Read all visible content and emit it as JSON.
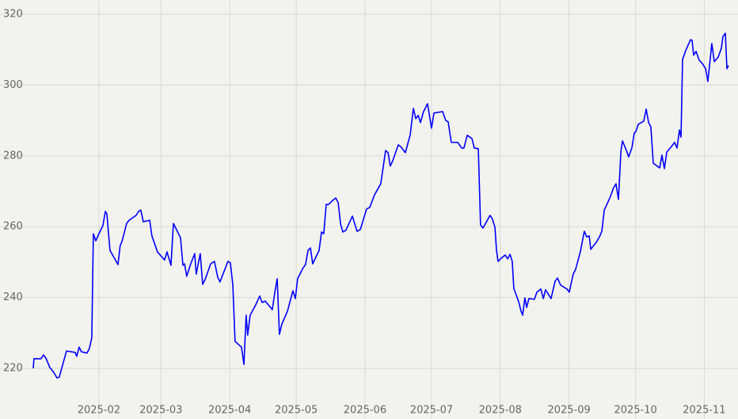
{
  "chart_data": {
    "type": "line",
    "color": "#0000ff",
    "grid": true,
    "xlim": [
      -13.6,
      319.2
    ],
    "ylim": [
      205.7,
      324.0
    ],
    "xticks": [
      {
        "value": 31,
        "label": "2025-02"
      },
      {
        "value": 59,
        "label": "2025-03"
      },
      {
        "value": 90,
        "label": "2025-04"
      },
      {
        "value": 120,
        "label": "2025-05"
      },
      {
        "value": 151,
        "label": "2025-06"
      },
      {
        "value": 181,
        "label": "2025-07"
      },
      {
        "value": 212,
        "label": "2025-08"
      },
      {
        "value": 243,
        "label": "2025-09"
      },
      {
        "value": 273,
        "label": "2025-10"
      },
      {
        "value": 304,
        "label": "2025-11"
      }
    ],
    "yticks": [
      220,
      240,
      260,
      280,
      300,
      320
    ],
    "x": [
      1.4,
      1.7,
      4.9,
      6.0,
      7.1,
      8.9,
      10.6,
      12.1,
      13.1,
      16.4,
      20.3,
      21.0,
      22.1,
      23.1,
      25.6,
      26.7,
      27.8,
      28.5,
      29.6,
      31.0,
      32.8,
      33.9,
      34.6,
      36.0,
      39.6,
      40.6,
      41.4,
      43.5,
      44.6,
      47.8,
      48.9,
      49.9,
      51.0,
      53.9,
      54.9,
      57.4,
      60.6,
      61.7,
      63.5,
      64.6,
      67.8,
      68.9,
      69.6,
      70.6,
      72.4,
      74.2,
      74.9,
      76.7,
      77.8,
      78.9,
      81.4,
      83.1,
      84.6,
      85.6,
      89.2,
      90.3,
      91.4,
      92.4,
      95.3,
      96.4,
      97.4,
      98.1,
      99.2,
      101.7,
      103.5,
      104.6,
      106.0,
      109.2,
      110.3,
      111.4,
      112.4,
      113.5,
      116.0,
      118.5,
      119.6,
      120.6,
      123.1,
      124.2,
      125.3,
      126.4,
      127.4,
      130.3,
      131.4,
      132.4,
      133.5,
      134.6,
      136.4,
      137.8,
      138.9,
      140.0,
      141.0,
      142.4,
      145.3,
      147.4,
      148.9,
      151.7,
      153.1,
      155.3,
      158.1,
      160.3,
      161.4,
      162.4,
      163.5,
      166.0,
      167.1,
      169.2,
      171.4,
      172.8,
      173.9,
      175.0,
      176.0,
      177.4,
      179.2,
      181.0,
      182.1,
      186.0,
      187.4,
      188.5,
      189.9,
      192.8,
      194.6,
      195.6,
      197.1,
      199.2,
      200.3,
      202.1,
      203.1,
      204.2,
      205.6,
      207.4,
      208.5,
      209.6,
      210.3,
      211.0,
      212.8,
      214.2,
      215.3,
      216.4,
      217.4,
      218.1,
      220.3,
      221.4,
      222.1,
      223.1,
      223.9,
      224.9,
      227.4,
      228.5,
      230.3,
      231.4,
      232.4,
      234.9,
      236.7,
      237.8,
      239.2,
      242.1,
      243.1,
      244.9,
      246.0,
      248.1,
      249.9,
      251.0,
      252.1,
      252.8,
      255.3,
      256.7,
      257.8,
      258.9,
      261.4,
      263.1,
      264.2,
      265.3,
      266.4,
      267.1,
      268.9,
      269.9,
      271.4,
      272.4,
      273.1,
      274.2,
      276.7,
      277.8,
      278.9,
      279.9,
      281.0,
      283.9,
      284.9,
      286.0,
      287.1,
      288.9,
      290.6,
      291.7,
      292.8,
      293.5,
      294.2,
      295.6,
      297.8,
      298.5,
      299.2,
      300.3,
      301.7,
      303.1,
      304.6,
      305.6,
      307.4,
      308.5,
      310.3,
      311.7,
      312.4,
      313.5,
      314.2,
      314.9
    ],
    "values": [
      220.0,
      222.7,
      222.7,
      223.8,
      222.9,
      220.2,
      218.9,
      217.3,
      217.5,
      224.9,
      224.5,
      223.4,
      226.0,
      224.7,
      224.3,
      225.6,
      228.7,
      258.0,
      256.0,
      258.0,
      260.3,
      264.3,
      263.6,
      253.3,
      249.3,
      254.7,
      255.8,
      260.9,
      261.8,
      263.2,
      264.3,
      264.7,
      261.4,
      261.8,
      257.4,
      252.9,
      250.6,
      252.9,
      249.1,
      260.9,
      256.9,
      249.1,
      249.5,
      246.0,
      249.5,
      252.4,
      246.6,
      252.4,
      243.7,
      245.1,
      249.5,
      250.2,
      245.7,
      244.4,
      250.2,
      249.8,
      243.5,
      227.6,
      226.0,
      221.1,
      235.0,
      229.4,
      235.0,
      237.9,
      240.4,
      238.6,
      239.0,
      236.6,
      241.3,
      245.3,
      229.6,
      232.5,
      236.1,
      241.9,
      239.7,
      245.3,
      248.4,
      249.3,
      253.3,
      254.0,
      249.5,
      253.3,
      258.5,
      258.0,
      266.3,
      266.3,
      267.4,
      268.1,
      266.8,
      260.7,
      258.5,
      259.0,
      263.0,
      258.7,
      259.2,
      265.0,
      265.4,
      269.0,
      272.1,
      281.5,
      280.9,
      277.1,
      278.6,
      283.1,
      282.6,
      280.9,
      286.0,
      293.4,
      290.5,
      291.4,
      289.4,
      292.5,
      294.7,
      287.8,
      292.1,
      292.5,
      290.0,
      289.6,
      283.8,
      283.8,
      282.2,
      282.2,
      285.8,
      284.9,
      282.2,
      282.0,
      260.5,
      259.6,
      261.2,
      263.2,
      262.1,
      259.8,
      253.3,
      250.2,
      251.3,
      252.0,
      250.9,
      252.2,
      250.2,
      242.6,
      238.8,
      236.1,
      235.0,
      239.9,
      237.2,
      239.7,
      239.5,
      241.5,
      242.4,
      239.7,
      242.2,
      239.7,
      244.6,
      245.5,
      243.5,
      242.4,
      241.5,
      246.6,
      248.0,
      252.9,
      258.7,
      257.1,
      257.4,
      253.6,
      255.6,
      257.1,
      258.7,
      264.7,
      268.1,
      271.0,
      272.1,
      267.7,
      281.3,
      284.2,
      281.5,
      279.7,
      282.4,
      286.4,
      286.8,
      288.9,
      289.8,
      293.2,
      289.4,
      288.2,
      277.9,
      276.6,
      280.2,
      276.4,
      281.1,
      282.4,
      283.8,
      282.2,
      287.3,
      285.3,
      307.2,
      309.7,
      312.8,
      312.6,
      308.4,
      309.5,
      307.0,
      306.1,
      304.6,
      301.0,
      311.7,
      306.6,
      307.9,
      310.4,
      313.7,
      314.6,
      304.6,
      305.5
    ]
  }
}
